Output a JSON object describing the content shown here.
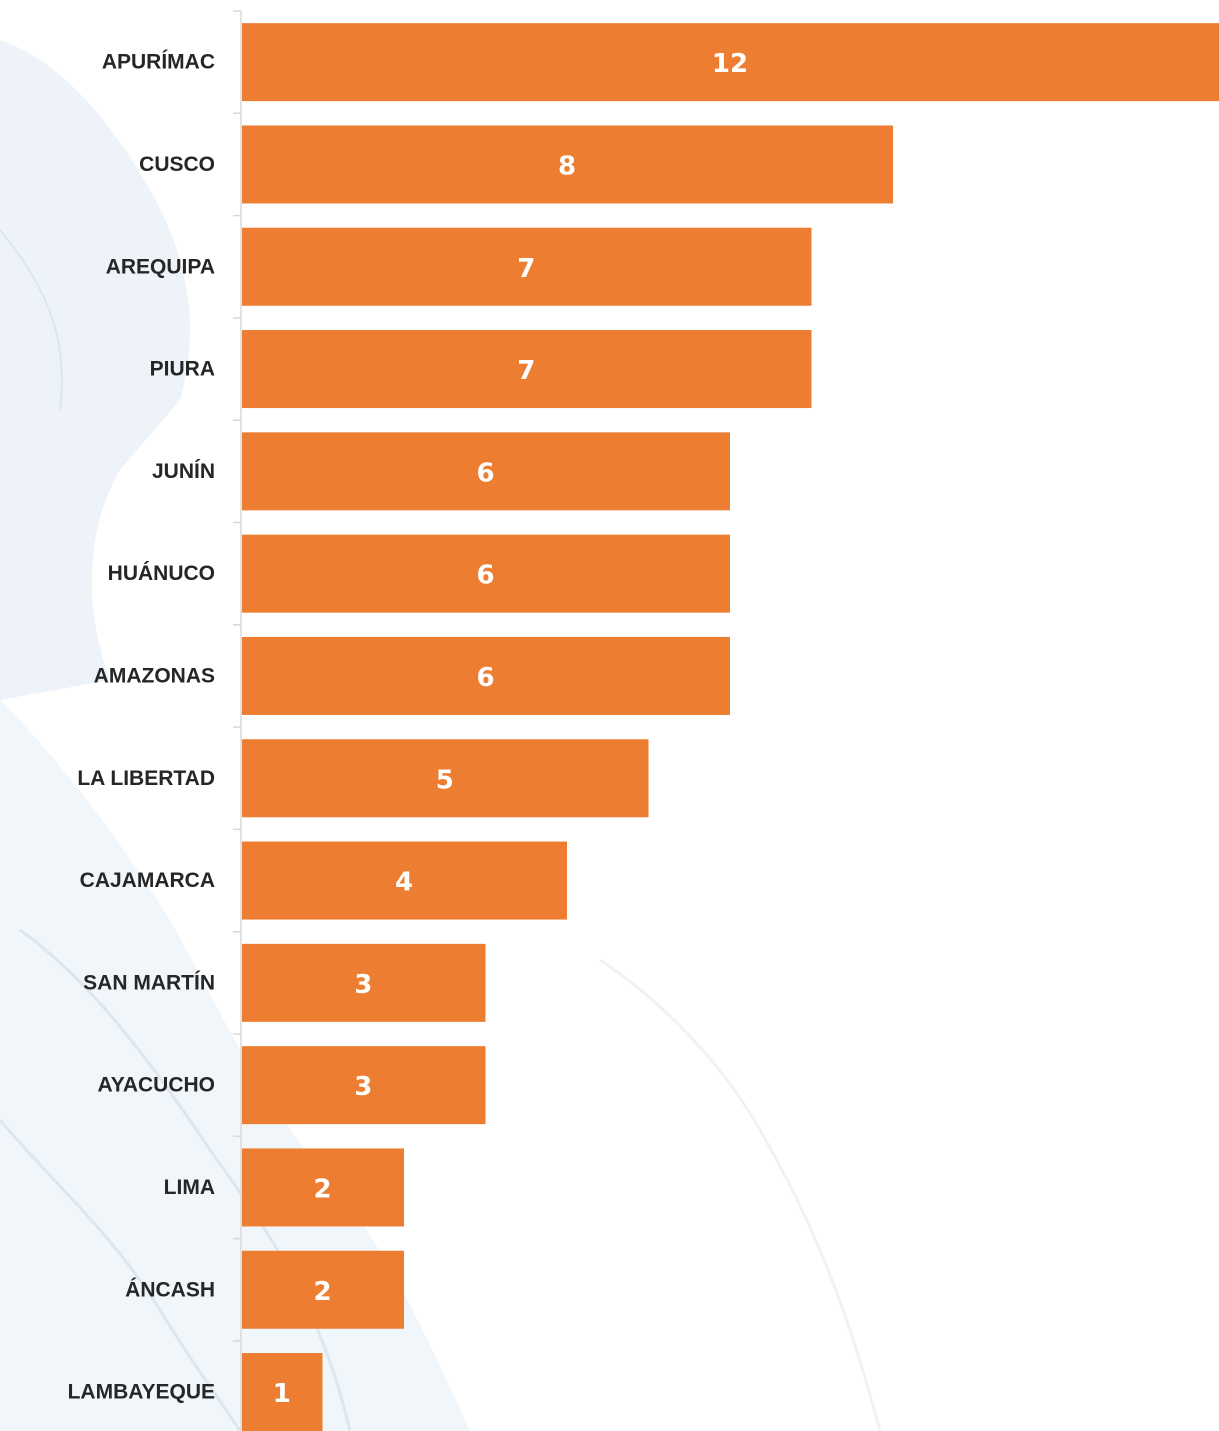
{
  "chart_data": {
    "type": "bar",
    "orientation": "horizontal",
    "categories": [
      "APURÍMAC",
      "CUSCO",
      "AREQUIPA",
      "PIURA",
      "JUNÍN",
      "HUÁNUCO",
      "AMAZONAS",
      "LA LIBERTAD",
      "CAJAMARCA",
      "SAN MARTÍN",
      "AYACUCHO",
      "LIMA",
      "ÁNCASH",
      "LAMBAYEQUE"
    ],
    "values": [
      12,
      8,
      7,
      7,
      6,
      6,
      6,
      5,
      4,
      3,
      3,
      2,
      2,
      1
    ],
    "data_labels": [
      "12",
      "8",
      "7",
      "7",
      "6",
      "6",
      "6",
      "5",
      "4",
      "3",
      "3",
      "2",
      "2",
      "1"
    ],
    "title": "",
    "xlabel": "",
    "ylabel": "",
    "xlim": [
      0,
      12
    ],
    "grid": false,
    "legend": "none",
    "colors": {
      "bar": "#ED7D31",
      "data_label": "#FFFFFF",
      "category_label": "#262626",
      "axis": "#D9D9D9",
      "background_map": "#EAF1F8"
    }
  }
}
